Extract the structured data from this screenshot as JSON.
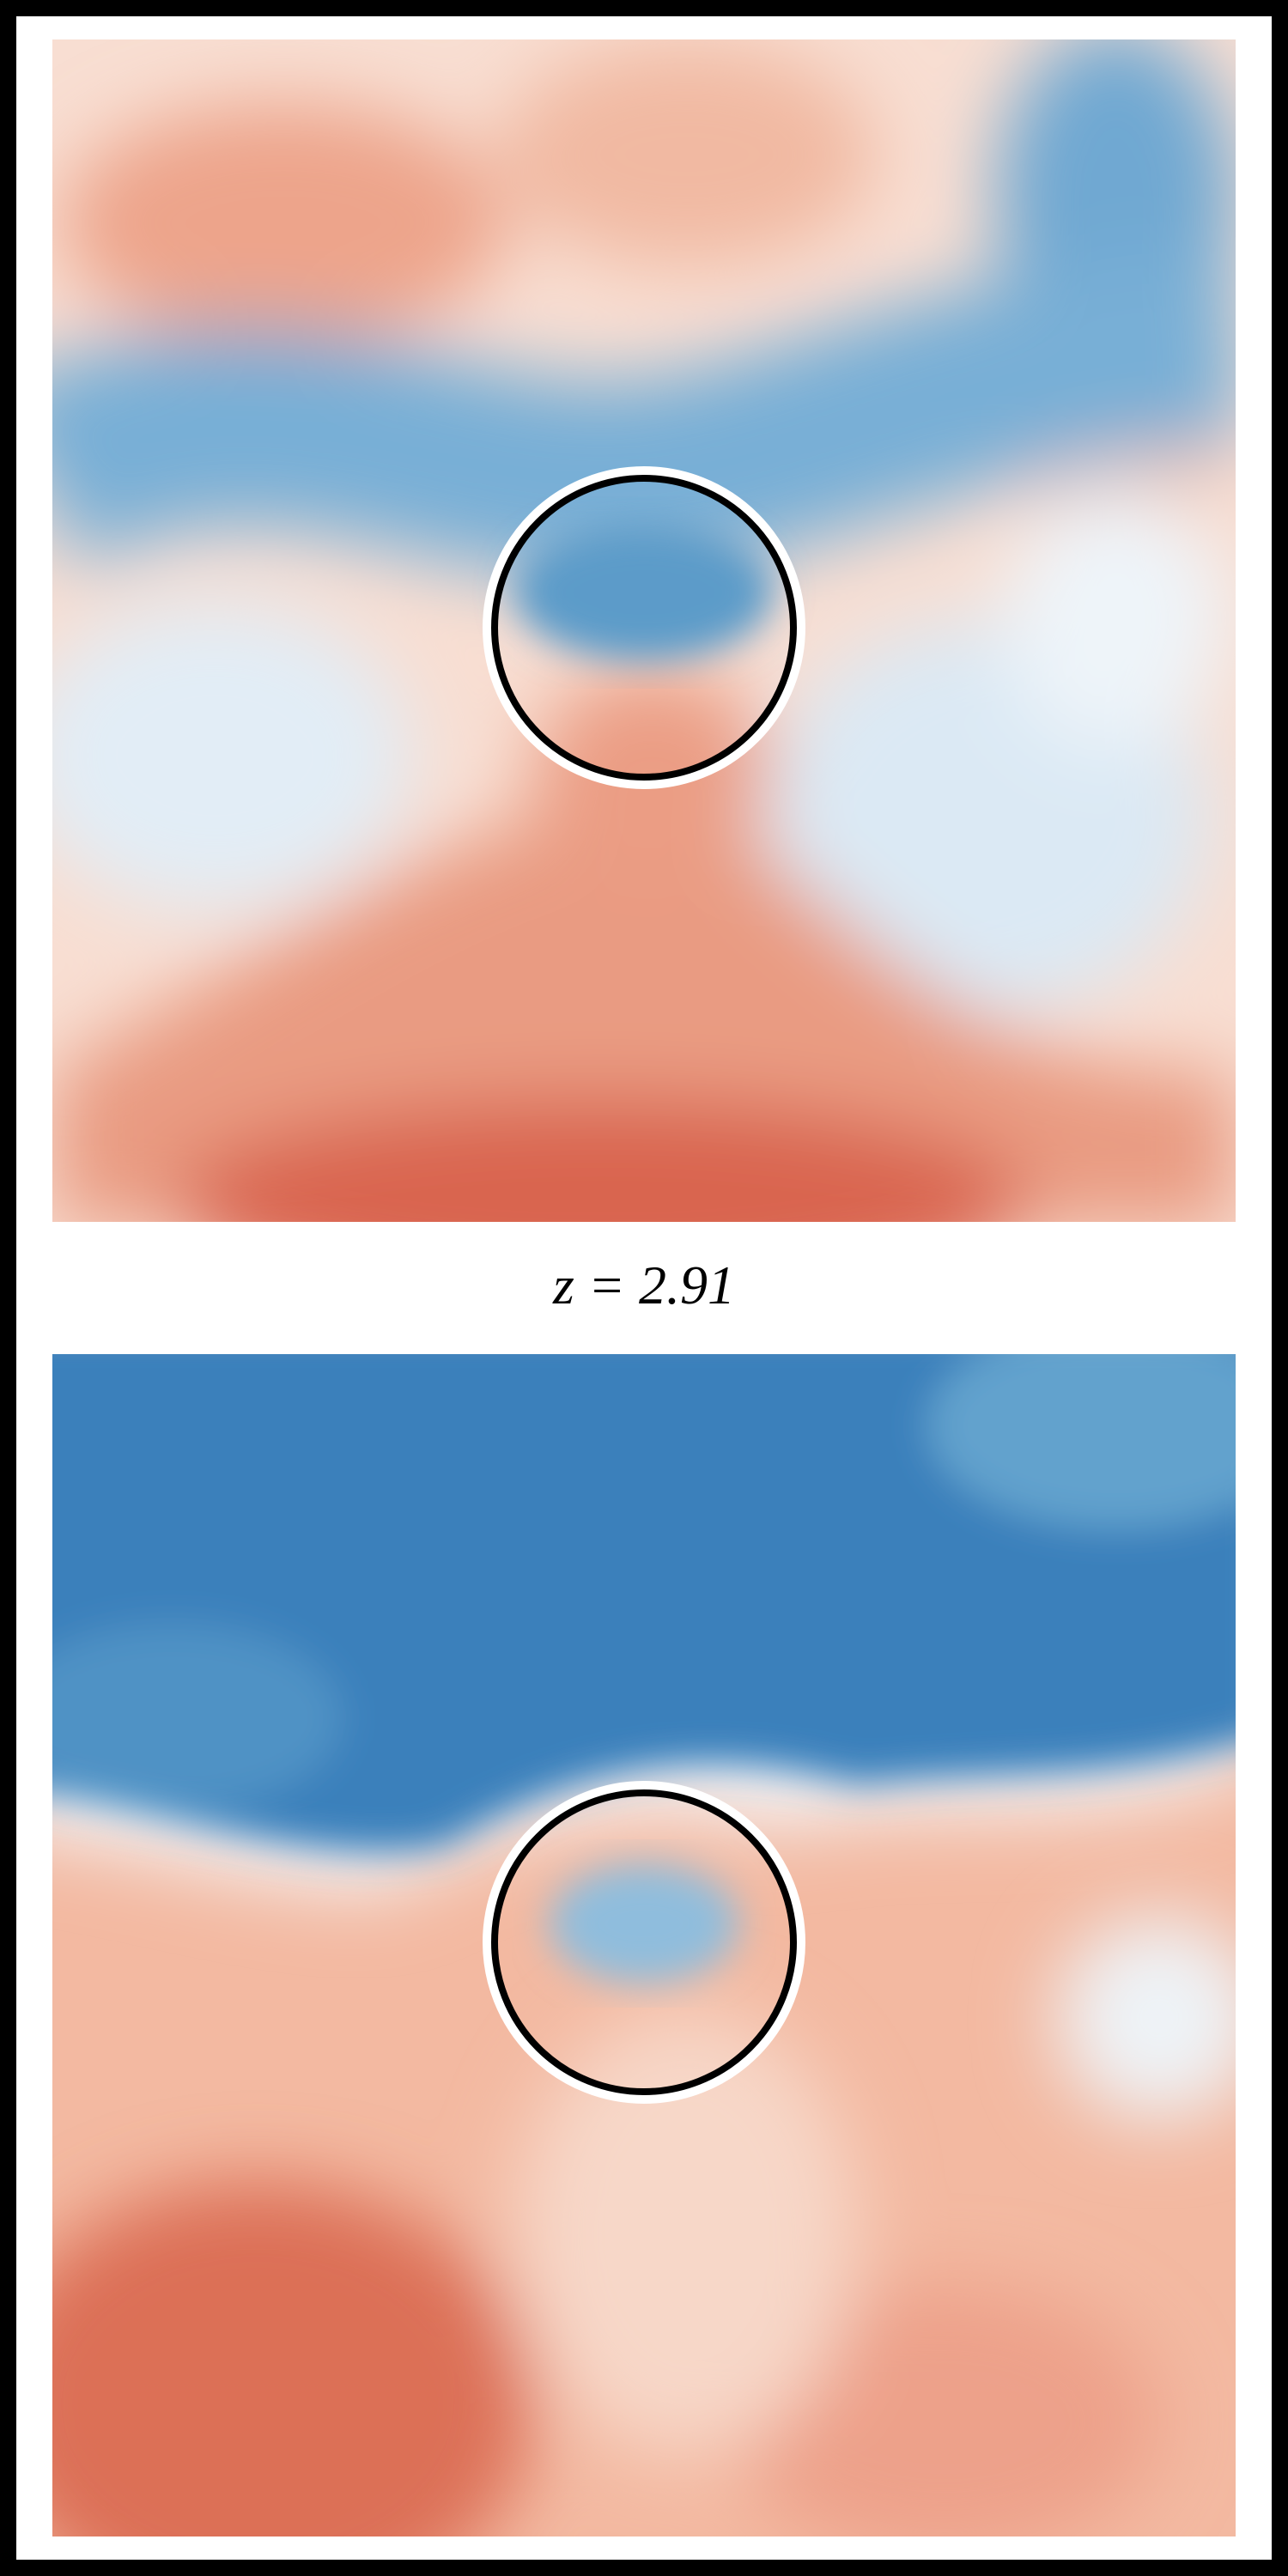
{
  "caption": "z = 2.91"
}
